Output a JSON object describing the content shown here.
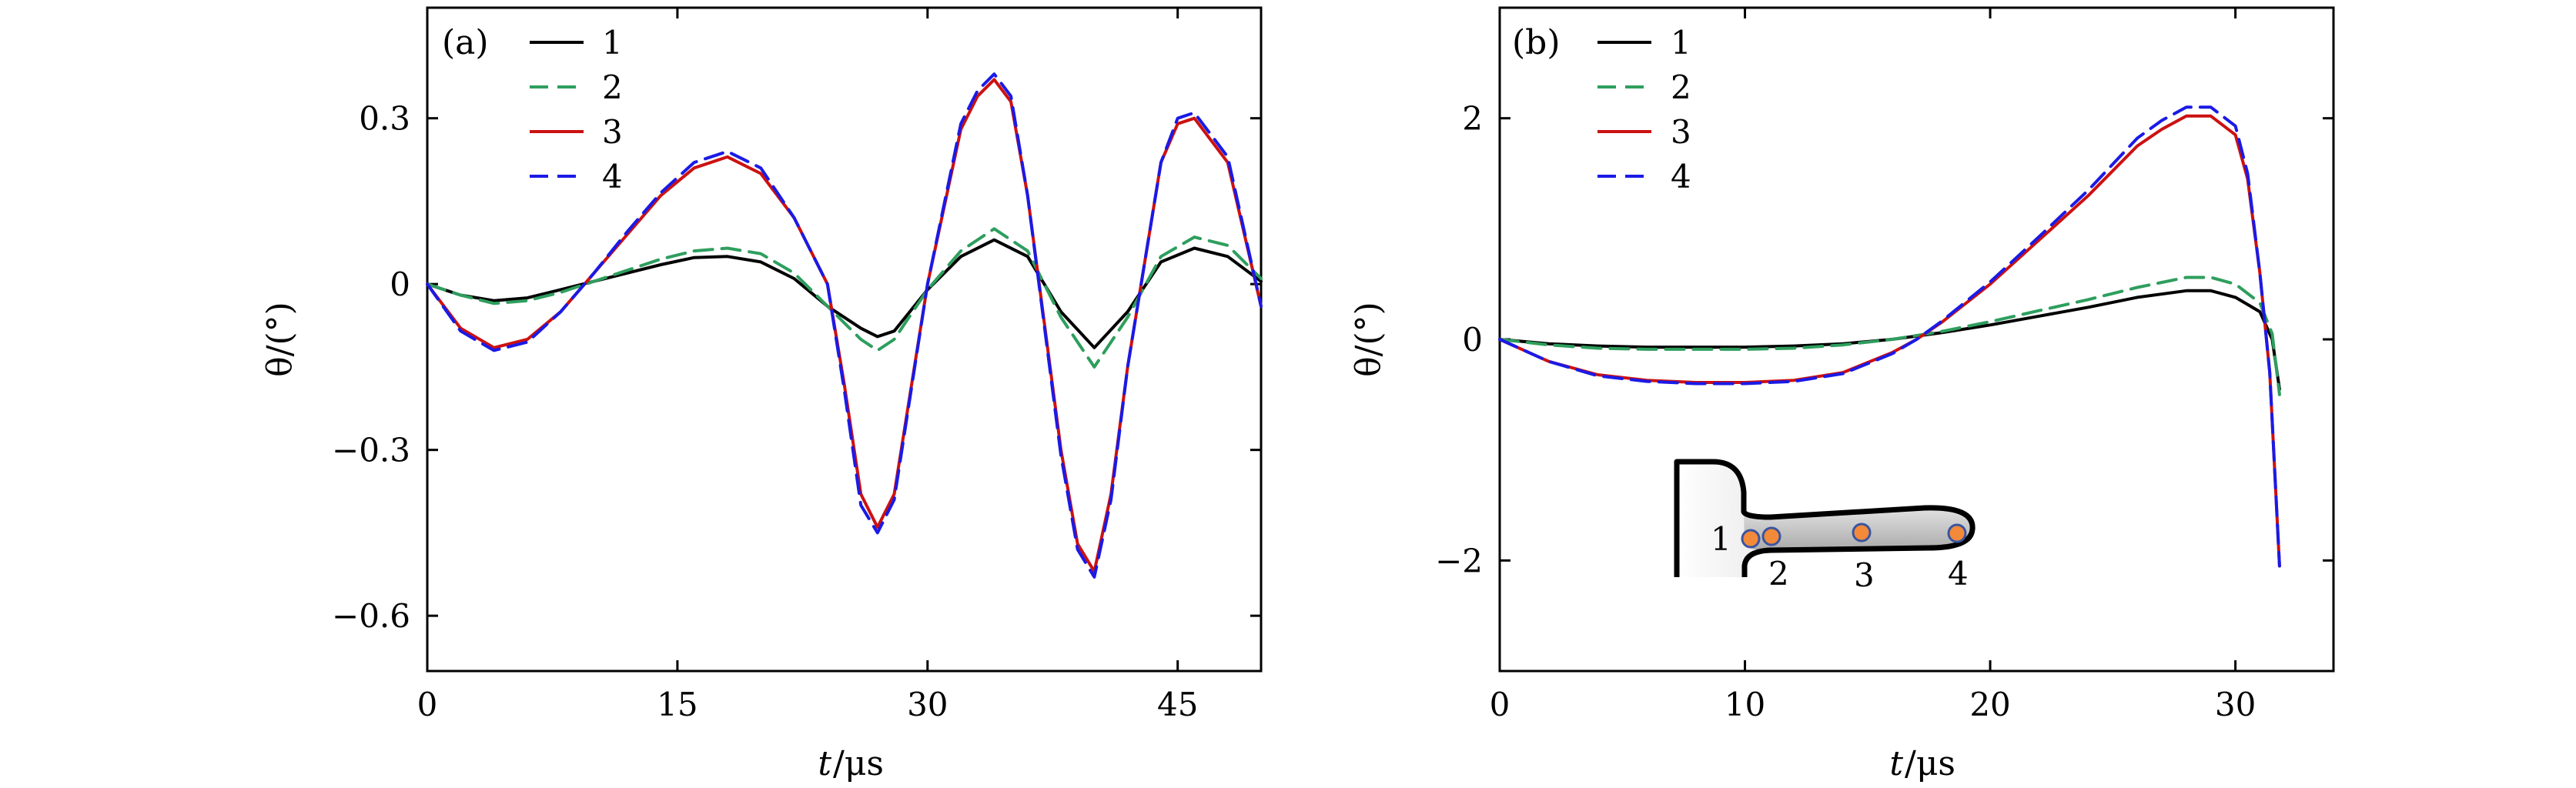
{
  "chart_data": [
    {
      "type": "line",
      "panel_label": "(a)",
      "xlabel_var": "t",
      "xlabel_unit": "/μs",
      "ylabel": "θ/(°)",
      "xlim": [
        0,
        50
      ],
      "ylim": [
        -0.7,
        0.5
      ],
      "xticks": [
        0,
        15,
        30,
        45
      ],
      "xtick_labels": [
        "0",
        "15",
        "30",
        "45"
      ],
      "yticks": [
        -0.6,
        -0.3,
        0,
        0.3
      ],
      "ytick_labels": [
        "−0.6",
        "−0.3",
        "0",
        "0.3"
      ],
      "legend_location": "top-left",
      "series": [
        {
          "name": "1",
          "color": "#000000",
          "dash": "solid",
          "x": [
            0,
            2,
            4,
            6,
            8,
            10,
            12,
            14,
            16,
            18,
            20,
            22,
            24,
            26,
            27,
            28,
            30,
            32,
            34,
            36,
            38,
            40,
            42,
            44,
            46,
            48,
            50
          ],
          "y": [
            0,
            -0.02,
            -0.03,
            -0.025,
            -0.01,
            0.005,
            0.02,
            0.035,
            0.048,
            0.05,
            0.04,
            0.01,
            -0.04,
            -0.08,
            -0.095,
            -0.085,
            -0.01,
            0.05,
            0.08,
            0.05,
            -0.05,
            -0.115,
            -0.05,
            0.04,
            0.065,
            0.05,
            0.005
          ]
        },
        {
          "name": "2",
          "color": "#2e9e5e",
          "dash": "dashed",
          "x": [
            0,
            2,
            4,
            6,
            8,
            10,
            12,
            14,
            16,
            18,
            20,
            22,
            24,
            26,
            27,
            28,
            30,
            32,
            34,
            36,
            38,
            40,
            42,
            44,
            46,
            48,
            50
          ],
          "y": [
            0,
            -0.02,
            -0.035,
            -0.03,
            -0.015,
            0.005,
            0.025,
            0.045,
            0.06,
            0.065,
            0.055,
            0.02,
            -0.04,
            -0.1,
            -0.12,
            -0.1,
            -0.01,
            0.06,
            0.1,
            0.06,
            -0.06,
            -0.15,
            -0.06,
            0.05,
            0.085,
            0.07,
            0.01
          ]
        },
        {
          "name": "3",
          "color": "#cc1111",
          "dash": "solid",
          "x": [
            0,
            2,
            4,
            6,
            8,
            10,
            12,
            14,
            16,
            18,
            20,
            22,
            24,
            25,
            26,
            27,
            28,
            30,
            32,
            33,
            34,
            35,
            36,
            38,
            39,
            40,
            41,
            42,
            44,
            45,
            46,
            48,
            50
          ],
          "y": [
            0,
            -0.08,
            -0.115,
            -0.1,
            -0.05,
            0.02,
            0.09,
            0.16,
            0.21,
            0.23,
            0.2,
            0.12,
            0.0,
            -0.18,
            -0.38,
            -0.44,
            -0.38,
            0.0,
            0.28,
            0.34,
            0.37,
            0.33,
            0.16,
            -0.3,
            -0.47,
            -0.52,
            -0.38,
            -0.15,
            0.22,
            0.29,
            0.3,
            0.22,
            -0.04
          ]
        },
        {
          "name": "4",
          "color": "#1a1ae6",
          "dash": "dashed",
          "x": [
            0,
            2,
            4,
            6,
            8,
            10,
            12,
            14,
            16,
            18,
            20,
            22,
            24,
            25,
            26,
            27,
            28,
            30,
            32,
            33,
            34,
            35,
            36,
            38,
            39,
            40,
            41,
            42,
            44,
            45,
            46,
            48,
            50
          ],
          "y": [
            0,
            -0.085,
            -0.12,
            -0.105,
            -0.05,
            0.02,
            0.095,
            0.165,
            0.22,
            0.24,
            0.21,
            0.12,
            0.0,
            -0.19,
            -0.4,
            -0.45,
            -0.39,
            0.0,
            0.29,
            0.35,
            0.38,
            0.34,
            0.16,
            -0.31,
            -0.48,
            -0.53,
            -0.39,
            -0.15,
            0.22,
            0.3,
            0.31,
            0.23,
            -0.04
          ]
        }
      ]
    },
    {
      "type": "line",
      "panel_label": "(b)",
      "xlabel_var": "t",
      "xlabel_unit": "/μs",
      "ylabel": "θ/(°)",
      "xlim": [
        0,
        34
      ],
      "ylim": [
        -3,
        3
      ],
      "xticks": [
        0,
        10,
        20,
        30
      ],
      "xtick_labels": [
        "0",
        "10",
        "20",
        "30"
      ],
      "yticks": [
        -2,
        0,
        2
      ],
      "ytick_labels": [
        "−2",
        "0",
        "2"
      ],
      "legend_location": "top-left",
      "inset_labels": [
        "1",
        "2",
        "3",
        "4"
      ],
      "series": [
        {
          "name": "1",
          "color": "#000000",
          "dash": "solid",
          "x": [
            0,
            2,
            4,
            6,
            8,
            10,
            12,
            14,
            16,
            18,
            20,
            22,
            24,
            26,
            28,
            29,
            30,
            31,
            31.5,
            31.8
          ],
          "y": [
            0,
            -0.04,
            -0.06,
            -0.07,
            -0.07,
            -0.07,
            -0.06,
            -0.04,
            0.0,
            0.06,
            0.13,
            0.21,
            0.29,
            0.38,
            0.44,
            0.44,
            0.38,
            0.25,
            0.0,
            -0.45
          ]
        },
        {
          "name": "2",
          "color": "#2e9e5e",
          "dash": "dashed",
          "x": [
            0,
            2,
            4,
            6,
            8,
            10,
            12,
            14,
            16,
            18,
            20,
            22,
            24,
            26,
            28,
            29,
            30,
            31,
            31.5,
            31.8
          ],
          "y": [
            0,
            -0.05,
            -0.08,
            -0.09,
            -0.09,
            -0.09,
            -0.08,
            -0.05,
            0.0,
            0.07,
            0.16,
            0.26,
            0.36,
            0.47,
            0.56,
            0.56,
            0.5,
            0.33,
            0.05,
            -0.5
          ]
        },
        {
          "name": "3",
          "color": "#cc1111",
          "dash": "solid",
          "x": [
            0,
            1,
            2,
            4,
            6,
            8,
            10,
            12,
            14,
            16,
            17,
            18,
            20,
            22,
            24,
            26,
            27,
            28,
            29,
            30,
            30.5,
            31,
            31.4,
            31.8
          ],
          "y": [
            0,
            -0.1,
            -0.2,
            -0.32,
            -0.37,
            -0.39,
            -0.39,
            -0.37,
            -0.3,
            -0.12,
            0.0,
            0.15,
            0.5,
            0.9,
            1.3,
            1.75,
            1.9,
            2.02,
            2.02,
            1.85,
            1.45,
            0.6,
            -0.3,
            -2.05
          ]
        },
        {
          "name": "4",
          "color": "#1a1ae6",
          "dash": "dashed",
          "x": [
            0,
            1,
            2,
            4,
            6,
            8,
            10,
            12,
            14,
            16,
            17,
            18,
            20,
            22,
            24,
            26,
            27,
            28,
            29,
            30,
            30.5,
            31,
            31.4,
            31.8
          ],
          "y": [
            0,
            -0.1,
            -0.2,
            -0.33,
            -0.38,
            -0.4,
            -0.4,
            -0.38,
            -0.31,
            -0.13,
            0.0,
            0.16,
            0.52,
            0.93,
            1.35,
            1.82,
            1.98,
            2.1,
            2.1,
            1.93,
            1.5,
            0.6,
            -0.3,
            -2.05
          ]
        }
      ]
    }
  ]
}
